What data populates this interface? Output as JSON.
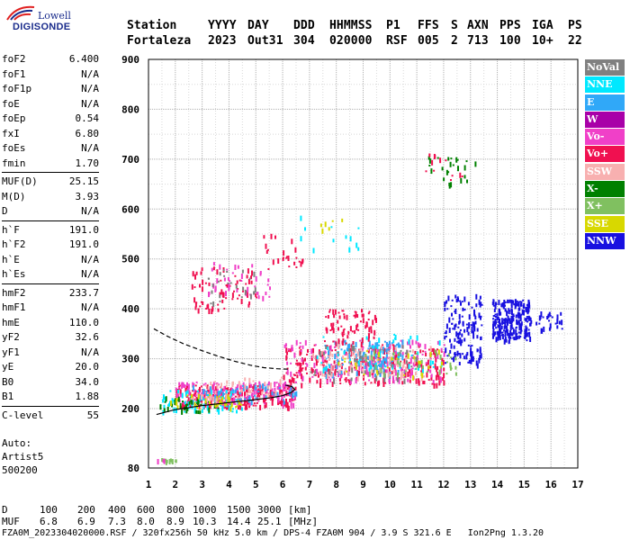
{
  "logo": {
    "line1": "Lowell",
    "line2": "DIGISONDE"
  },
  "header": {
    "labels": [
      "Station",
      "YYYY",
      "DAY",
      "DDD",
      "HHMMSS",
      "P1",
      "FFS",
      "S",
      "AXN",
      "PPS",
      "IGA",
      "PS"
    ],
    "values": [
      "Fortaleza",
      "2023",
      "Out31",
      "304",
      "020000",
      "RSF",
      "005",
      "2",
      "713",
      "100",
      "10+",
      "22"
    ]
  },
  "params": [
    [
      [
        "foF2",
        "6.400"
      ],
      [
        "foF1",
        "N/A"
      ],
      [
        "foF1p",
        "N/A"
      ],
      [
        "foE",
        "N/A"
      ],
      [
        "foEp",
        "0.54"
      ],
      [
        "fxI",
        "6.80"
      ],
      [
        "foEs",
        "N/A"
      ],
      [
        "fmin",
        "1.70"
      ]
    ],
    [
      [
        "MUF(D)",
        "25.15"
      ],
      [
        "M(D)",
        "3.93"
      ],
      [
        "D",
        "N/A"
      ]
    ],
    [
      [
        "h`F",
        "191.0"
      ],
      [
        "h`F2",
        "191.0"
      ],
      [
        "h`E",
        "N/A"
      ],
      [
        "h`Es",
        "N/A"
      ]
    ],
    [
      [
        "hmF2",
        "233.7"
      ],
      [
        "hmF1",
        "N/A"
      ],
      [
        "hmE",
        "110.0"
      ],
      [
        "yF2",
        "32.6"
      ],
      [
        "yF1",
        "N/A"
      ],
      [
        "yE",
        "20.0"
      ],
      [
        "B0",
        "34.0"
      ],
      [
        "B1",
        "1.88"
      ]
    ],
    [
      [
        "C-level",
        "55"
      ]
    ]
  ],
  "auto": [
    "Auto:",
    "Artist5",
    "500200"
  ],
  "legend": [
    {
      "label": "NoVal",
      "color": "#808080"
    },
    {
      "label": "NNE",
      "color": "#00e8ff"
    },
    {
      "label": "E",
      "color": "#30a8f8"
    },
    {
      "label": "W",
      "color": "#a800a8"
    },
    {
      "label": "Vo-",
      "color": "#f040c8"
    },
    {
      "label": "Vo+",
      "color": "#f01050"
    },
    {
      "label": "SSW",
      "color": "#f8b0b0"
    },
    {
      "label": "X-",
      "color": "#008000"
    },
    {
      "label": "X+",
      "color": "#80c060"
    },
    {
      "label": "SSE",
      "color": "#d8d800"
    },
    {
      "label": "NNW",
      "color": "#1810e0"
    }
  ],
  "chart_data": {
    "type": "scatter",
    "xlim": [
      1,
      17
    ],
    "ylim": [
      80,
      900
    ],
    "x_ticks": [
      "1",
      "2",
      "3",
      "4",
      "5",
      "6",
      "7",
      "8",
      "9",
      "10",
      "11",
      "12",
      "13",
      "14",
      "15",
      "16",
      "17"
    ],
    "y_ticks": [
      {
        "value": 900,
        "label": "900"
      },
      {
        "value": 800,
        "label": "800"
      },
      {
        "value": 700,
        "label": "700"
      },
      {
        "value": 600,
        "label": "600"
      },
      {
        "value": 500,
        "label": "500"
      },
      {
        "value": 400,
        "label": "400"
      },
      {
        "value": 300,
        "label": "300"
      },
      {
        "value": 200,
        "label": "200"
      },
      {
        "value": 80,
        "label": "80"
      }
    ],
    "grid": true,
    "point_clusters": [
      {
        "color": "#f01050",
        "x": [
          2.0,
          6.5
        ],
        "y": [
          205,
          250
        ],
        "n": 260
      },
      {
        "color": "#f040c8",
        "x": [
          2.0,
          6.5
        ],
        "y": [
          210,
          255
        ],
        "n": 160
      },
      {
        "color": "#00e8ff",
        "x": [
          1.5,
          4.5
        ],
        "y": [
          195,
          240
        ],
        "n": 70
      },
      {
        "color": "#30a8f8",
        "x": [
          2.5,
          6.5
        ],
        "y": [
          215,
          250
        ],
        "n": 60
      },
      {
        "color": "#008000",
        "x": [
          1.4,
          4.0
        ],
        "y": [
          195,
          225
        ],
        "n": 40
      },
      {
        "color": "#d8d800",
        "x": [
          1.8,
          4.5
        ],
        "y": [
          200,
          230
        ],
        "n": 40
      },
      {
        "color": "#f8b0b0",
        "x": [
          2.5,
          6.0
        ],
        "y": [
          220,
          265
        ],
        "n": 50
      },
      {
        "color": "#f01050",
        "x": [
          6.0,
          12.0
        ],
        "y": [
          250,
          330
        ],
        "n": 280
      },
      {
        "color": "#f040c8",
        "x": [
          6.0,
          12.0
        ],
        "y": [
          255,
          340
        ],
        "n": 160
      },
      {
        "color": "#30a8f8",
        "x": [
          7.5,
          10.5
        ],
        "y": [
          270,
          340
        ],
        "n": 130
      },
      {
        "color": "#f8b0b0",
        "x": [
          7.0,
          11.5
        ],
        "y": [
          265,
          330
        ],
        "n": 90
      },
      {
        "color": "#00e8ff",
        "x": [
          7.0,
          12.0
        ],
        "y": [
          280,
          350
        ],
        "n": 50
      },
      {
        "color": "#808080",
        "x": [
          7.0,
          11.0
        ],
        "y": [
          260,
          330
        ],
        "n": 50
      },
      {
        "color": "#80c060",
        "x": [
          9.0,
          12.5
        ],
        "y": [
          270,
          320
        ],
        "n": 40
      },
      {
        "color": "#d8d800",
        "x": [
          8.0,
          12.0
        ],
        "y": [
          265,
          320
        ],
        "n": 30
      },
      {
        "color": "#f01050",
        "x": [
          7.5,
          9.5
        ],
        "y": [
          330,
          400
        ],
        "n": 80
      },
      {
        "color": "#1810e0",
        "x": [
          12.0,
          13.4
        ],
        "y": [
          290,
          430
        ],
        "n": 140
      },
      {
        "color": "#1810e0",
        "x": [
          13.8,
          15.2
        ],
        "y": [
          335,
          420
        ],
        "n": 240
      },
      {
        "color": "#1810e0",
        "x": [
          15.2,
          16.4
        ],
        "y": [
          360,
          395
        ],
        "n": 30
      },
      {
        "color": "#f01050",
        "x": [
          2.6,
          5.0
        ],
        "y": [
          400,
          485
        ],
        "n": 70
      },
      {
        "color": "#f040c8",
        "x": [
          3.0,
          5.5
        ],
        "y": [
          420,
          495
        ],
        "n": 40
      },
      {
        "color": "#808080",
        "x": [
          3.0,
          5.0
        ],
        "y": [
          410,
          480
        ],
        "n": 25
      },
      {
        "color": "#f01050",
        "x": [
          5.2,
          6.8
        ],
        "y": [
          475,
          560
        ],
        "n": 25
      },
      {
        "color": "#00e8ff",
        "x": [
          6.5,
          9.0
        ],
        "y": [
          520,
          590
        ],
        "n": 12
      },
      {
        "color": "#d8d800",
        "x": [
          7.0,
          8.5
        ],
        "y": [
          560,
          585
        ],
        "n": 6
      },
      {
        "color": "#008000",
        "x": [
          11.3,
          13.2
        ],
        "y": [
          650,
          710
        ],
        "n": 25
      },
      {
        "color": "#f01050",
        "x": [
          11.3,
          12.8
        ],
        "y": [
          655,
          715
        ],
        "n": 12
      },
      {
        "color": "#80c060",
        "x": [
          1.4,
          2.0
        ],
        "y": [
          95,
          100
        ],
        "n": 14
      },
      {
        "color": "#f040c8",
        "x": [
          1.3,
          1.6
        ],
        "y": [
          95,
          100
        ],
        "n": 5
      }
    ],
    "solid_profile": [
      [
        1.3,
        188
      ],
      [
        2.0,
        198
      ],
      [
        3.0,
        206
      ],
      [
        4.0,
        212
      ],
      [
        5.0,
        218
      ],
      [
        5.6,
        222
      ],
      [
        6.0,
        226
      ],
      [
        6.3,
        232
      ],
      [
        6.45,
        238
      ],
      [
        6.35,
        244
      ],
      [
        6.1,
        247
      ]
    ],
    "dashed_profile": [
      [
        1.2,
        360
      ],
      [
        1.7,
        345
      ],
      [
        2.3,
        330
      ],
      [
        3.0,
        316
      ],
      [
        3.6,
        305
      ],
      [
        4.2,
        295
      ],
      [
        4.8,
        287
      ],
      [
        5.3,
        282
      ],
      [
        5.8,
        280
      ],
      [
        6.2,
        279
      ]
    ]
  },
  "bottom": {
    "d_label": "D",
    "d_values": [
      "100",
      "200",
      "400",
      "600",
      "800",
      "1000",
      "1500",
      "3000"
    ],
    "d_unit": "[km]",
    "muf_label": "MUF",
    "muf_values": [
      "6.8",
      "6.9",
      "7.3",
      "8.0",
      "8.9",
      "10.3",
      "14.4",
      "25.1"
    ],
    "muf_unit": "[MHz]"
  },
  "footer": "FZA0M_2023304020000.RSF / 320fx256h 50 kHz 5.0 km / DPS-4 FZA0M 904 / 3.9 S 321.6 E   Ion2Png 1.3.20"
}
